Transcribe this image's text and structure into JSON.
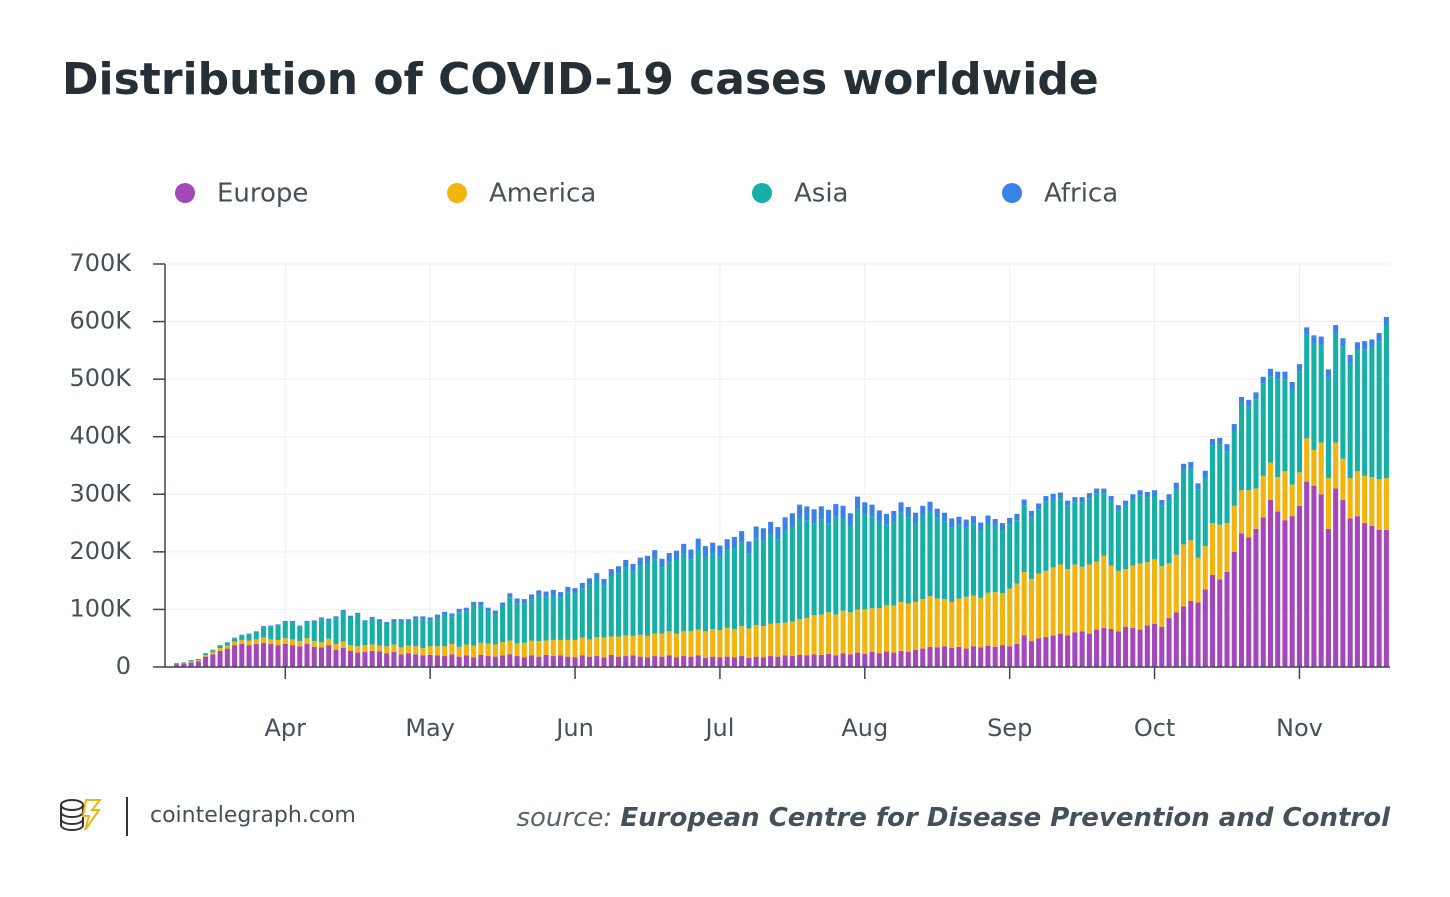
{
  "chart_data": {
    "type": "stacked_bar",
    "title": "Distribution of COVID-19 cases worldwide",
    "categories": [
      null,
      null,
      null,
      null,
      null,
      null,
      null,
      null,
      null,
      null,
      null,
      null,
      null,
      null,
      null,
      "Apr",
      null,
      null,
      null,
      null,
      null,
      null,
      null,
      null,
      null,
      null,
      null,
      null,
      null,
      null,
      null,
      null,
      null,
      null,
      null,
      "May",
      null,
      null,
      null,
      null,
      null,
      null,
      null,
      null,
      null,
      null,
      null,
      null,
      null,
      null,
      null,
      null,
      null,
      null,
      null,
      "Jun",
      null,
      null,
      null,
      null,
      null,
      null,
      null,
      null,
      null,
      null,
      null,
      null,
      null,
      null,
      null,
      null,
      null,
      null,
      null,
      "Jul",
      null,
      null,
      null,
      null,
      null,
      null,
      null,
      null,
      null,
      null,
      null,
      null,
      null,
      null,
      null,
      null,
      null,
      null,
      null,
      "Aug",
      null,
      null,
      null,
      null,
      null,
      null,
      null,
      null,
      null,
      null,
      null,
      null,
      null,
      null,
      null,
      null,
      null,
      null,
      null,
      "Sep",
      null,
      null,
      null,
      null,
      null,
      null,
      null,
      null,
      null,
      null,
      null,
      null,
      null,
      null,
      null,
      null,
      null,
      null,
      null,
      "Oct",
      null,
      null,
      null,
      null,
      null,
      null,
      null,
      null,
      null,
      null,
      null,
      null,
      null,
      null,
      null,
      null,
      null,
      null,
      null,
      "Nov",
      null,
      null,
      null,
      null,
      null,
      null,
      null,
      null,
      null,
      null,
      null,
      null
    ],
    "series": [
      {
        "name": "Europe",
        "color": "#a347ba",
        "values": [
          5000,
          6000,
          8000,
          10000,
          18000,
          22000,
          28000,
          32000,
          38000,
          40000,
          38000,
          40000,
          42000,
          40000,
          38000,
          40000,
          38000,
          36000,
          40000,
          35000,
          34000,
          38000,
          30000,
          33000,
          28000,
          25000,
          26000,
          28000,
          27000,
          24000,
          26000,
          22000,
          24000,
          22000,
          20000,
          21000,
          20000,
          19000,
          22000,
          18000,
          20000,
          17000,
          21000,
          19000,
          18000,
          20000,
          22000,
          19000,
          17000,
          20000,
          18000,
          21000,
          19000,
          20000,
          18000,
          17000,
          20000,
          18000,
          19000,
          17000,
          21000,
          18000,
          19000,
          20000,
          18000,
          17000,
          19000,
          18000,
          20000,
          17000,
          19000,
          18000,
          20000,
          16000,
          18000,
          17000,
          18000,
          17000,
          19000,
          16000,
          18000,
          17000,
          19000,
          18000,
          20000,
          19000,
          21000,
          20000,
          22000,
          21000,
          23000,
          20000,
          24000,
          22000,
          25000,
          23000,
          26000,
          24000,
          27000,
          25000,
          28000,
          26000,
          30000,
          32000,
          35000,
          34000,
          36000,
          33000,
          35000,
          32000,
          36000,
          34000,
          37000,
          35000,
          38000,
          36000,
          40000,
          55000,
          45000,
          50000,
          52000,
          55000,
          58000,
          55000,
          60000,
          62000,
          58000,
          65000,
          68000,
          66000,
          62000,
          70000,
          68000,
          65000,
          72000,
          75000,
          70000,
          85000,
          95000,
          105000,
          115000,
          112000,
          135000,
          160000,
          152000,
          165000,
          200000,
          232000,
          225000,
          240000,
          260000,
          290000,
          270000,
          255000,
          262000,
          280000,
          322000,
          315000,
          300000,
          240000,
          310000,
          290000,
          258000,
          262000,
          250000,
          245000,
          238000,
          238000
        ]
      },
      {
        "name": "America",
        "color": "#f2b50f",
        "values": [
          1000,
          1000,
          2000,
          2000,
          3000,
          4000,
          5000,
          5000,
          6000,
          7000,
          8000,
          8000,
          9000,
          8000,
          9000,
          10000,
          10000,
          9000,
          10000,
          10000,
          9000,
          11000,
          10000,
          11000,
          10000,
          11000,
          12000,
          11000,
          10000,
          12000,
          13000,
          12000,
          13000,
          14000,
          13000,
          15000,
          16000,
          17000,
          18000,
          17000,
          19000,
          20000,
          21000,
          22000,
          21000,
          23000,
          24000,
          22000,
          25000,
          26000,
          27000,
          25000,
          28000,
          27000,
          29000,
          30000,
          31000,
          30000,
          33000,
          34000,
          32000,
          35000,
          36000,
          34000,
          38000,
          37000,
          39000,
          40000,
          42000,
          41000,
          43000,
          44000,
          45000,
          46000,
          48000,
          47000,
          50000,
          49000,
          52000,
          51000,
          55000,
          54000,
          56000,
          58000,
          57000,
          60000,
          62000,
          65000,
          68000,
          70000,
          72000,
          71000,
          74000,
          73000,
          75000,
          77000,
          76000,
          78000,
          80000,
          82000,
          85000,
          84000,
          83000,
          86000,
          88000,
          85000,
          82000,
          80000,
          84000,
          90000,
          88000,
          86000,
          92000,
          95000,
          90000,
          100000,
          105000,
          110000,
          108000,
          112000,
          115000,
          118000,
          120000,
          115000,
          118000,
          112000,
          120000,
          118000,
          125000,
          110000,
          105000,
          100000,
          108000,
          115000,
          110000,
          112000,
          105000,
          95000,
          100000,
          108000,
          105000,
          78000,
          75000,
          90000,
          95000,
          85000,
          80000,
          75000,
          82000,
          70000,
          72000,
          65000,
          60000,
          85000,
          55000,
          58000,
          75000,
          62000,
          90000,
          88000,
          80000,
          72000,
          70000,
          78000,
          82000,
          85000,
          88000,
          90000
        ]
      },
      {
        "name": "Asia",
        "color": "#17b0a8",
        "values": [
          1000,
          1000,
          2000,
          2000,
          3000,
          3000,
          4000,
          5000,
          6000,
          8000,
          10000,
          12000,
          18000,
          22000,
          25000,
          28000,
          30000,
          25000,
          28000,
          34000,
          40000,
          32000,
          45000,
          52000,
          48000,
          55000,
          40000,
          45000,
          42000,
          38000,
          40000,
          45000,
          42000,
          48000,
          50000,
          45000,
          50000,
          55000,
          48000,
          60000,
          58000,
          70000,
          65000,
          55000,
          52000,
          62000,
          75000,
          70000,
          68000,
          72000,
          80000,
          76000,
          78000,
          74000,
          82000,
          80000,
          85000,
          95000,
          100000,
          90000,
          105000,
          110000,
          118000,
          112000,
          120000,
          125000,
          130000,
          115000,
          120000,
          128000,
          135000,
          125000,
          140000,
          130000,
          132000,
          128000,
          135000,
          140000,
          145000,
          130000,
          150000,
          148000,
          155000,
          145000,
          160000,
          165000,
          175000,
          170000,
          160000,
          165000,
          155000,
          170000,
          160000,
          150000,
          175000,
          165000,
          160000,
          150000,
          140000,
          145000,
          155000,
          150000,
          138000,
          145000,
          148000,
          140000,
          135000,
          130000,
          128000,
          120000,
          125000,
          118000,
          122000,
          115000,
          110000,
          112000,
          110000,
          115000,
          108000,
          112000,
          120000,
          118000,
          115000,
          110000,
          108000,
          112000,
          115000,
          118000,
          108000,
          112000,
          105000,
          110000,
          115000,
          118000,
          112000,
          110000,
          105000,
          110000,
          115000,
          130000,
          125000,
          118000,
          120000,
          135000,
          140000,
          125000,
          130000,
          150000,
          145000,
          155000,
          160000,
          150000,
          170000,
          160000,
          165000,
          175000,
          180000,
          185000,
          170000,
          175000,
          190000,
          195000,
          200000,
          210000,
          220000,
          225000,
          240000,
          265000
        ]
      },
      {
        "name": "Africa",
        "color": "#3b82e8",
        "values": [
          0,
          0,
          0,
          0,
          0,
          1000,
          1000,
          1000,
          1000,
          1000,
          2000,
          2000,
          2000,
          2000,
          2000,
          2000,
          2000,
          2000,
          2000,
          2000,
          3000,
          3000,
          3000,
          3000,
          3000,
          3000,
          3000,
          3000,
          4000,
          4000,
          4000,
          4000,
          4000,
          4000,
          5000,
          5000,
          5000,
          5000,
          5000,
          6000,
          6000,
          6000,
          6000,
          7000,
          7000,
          7000,
          7000,
          8000,
          8000,
          8000,
          8000,
          9000,
          9000,
          9000,
          10000,
          10000,
          10000,
          11000,
          11000,
          12000,
          12000,
          12000,
          13000,
          13000,
          14000,
          14000,
          15000,
          15000,
          16000,
          16000,
          17000,
          17000,
          18000,
          18000,
          18000,
          19000,
          19000,
          20000,
          20000,
          21000,
          21000,
          22000,
          22000,
          22000,
          23000,
          23000,
          24000,
          24000,
          24000,
          23000,
          23000,
          22000,
          22000,
          22000,
          21000,
          21000,
          20000,
          20000,
          19000,
          19000,
          18000,
          18000,
          17000,
          17000,
          16000,
          16000,
          15000,
          15000,
          14000,
          14000,
          13000,
          13000,
          12000,
          12000,
          12000,
          11000,
          11000,
          11000,
          10000,
          10000,
          10000,
          10000,
          10000,
          9000,
          9000,
          9000,
          9000,
          9000,
          9000,
          9000,
          9000,
          9000,
          9000,
          9000,
          10000,
          10000,
          10000,
          10000,
          10000,
          10000,
          11000,
          11000,
          11000,
          11000,
          11000,
          12000,
          12000,
          12000,
          12000,
          12000,
          12000,
          13000,
          13000,
          13000,
          13000,
          13000,
          13000,
          14000,
          14000,
          14000,
          14000,
          14000,
          14000,
          14000,
          14000,
          14000,
          14000,
          15000
        ]
      }
    ],
    "ylim": [
      0,
      700000
    ],
    "yticks": [
      0,
      {
        "value": 100000,
        "label": "100K"
      },
      {
        "value": 200000,
        "label": "200K"
      },
      {
        "value": 300000,
        "label": "300K"
      },
      {
        "value": 400000,
        "label": "400K"
      },
      {
        "value": 500000,
        "label": "500K"
      },
      {
        "value": 600000,
        "label": "600K"
      },
      {
        "value": 700000,
        "label": "700K"
      }
    ],
    "grid": true,
    "legend": "top",
    "brand": "cointelegraph.com",
    "source_prefix": "source:",
    "source": "European Centre for Disease Prevention and Control"
  }
}
